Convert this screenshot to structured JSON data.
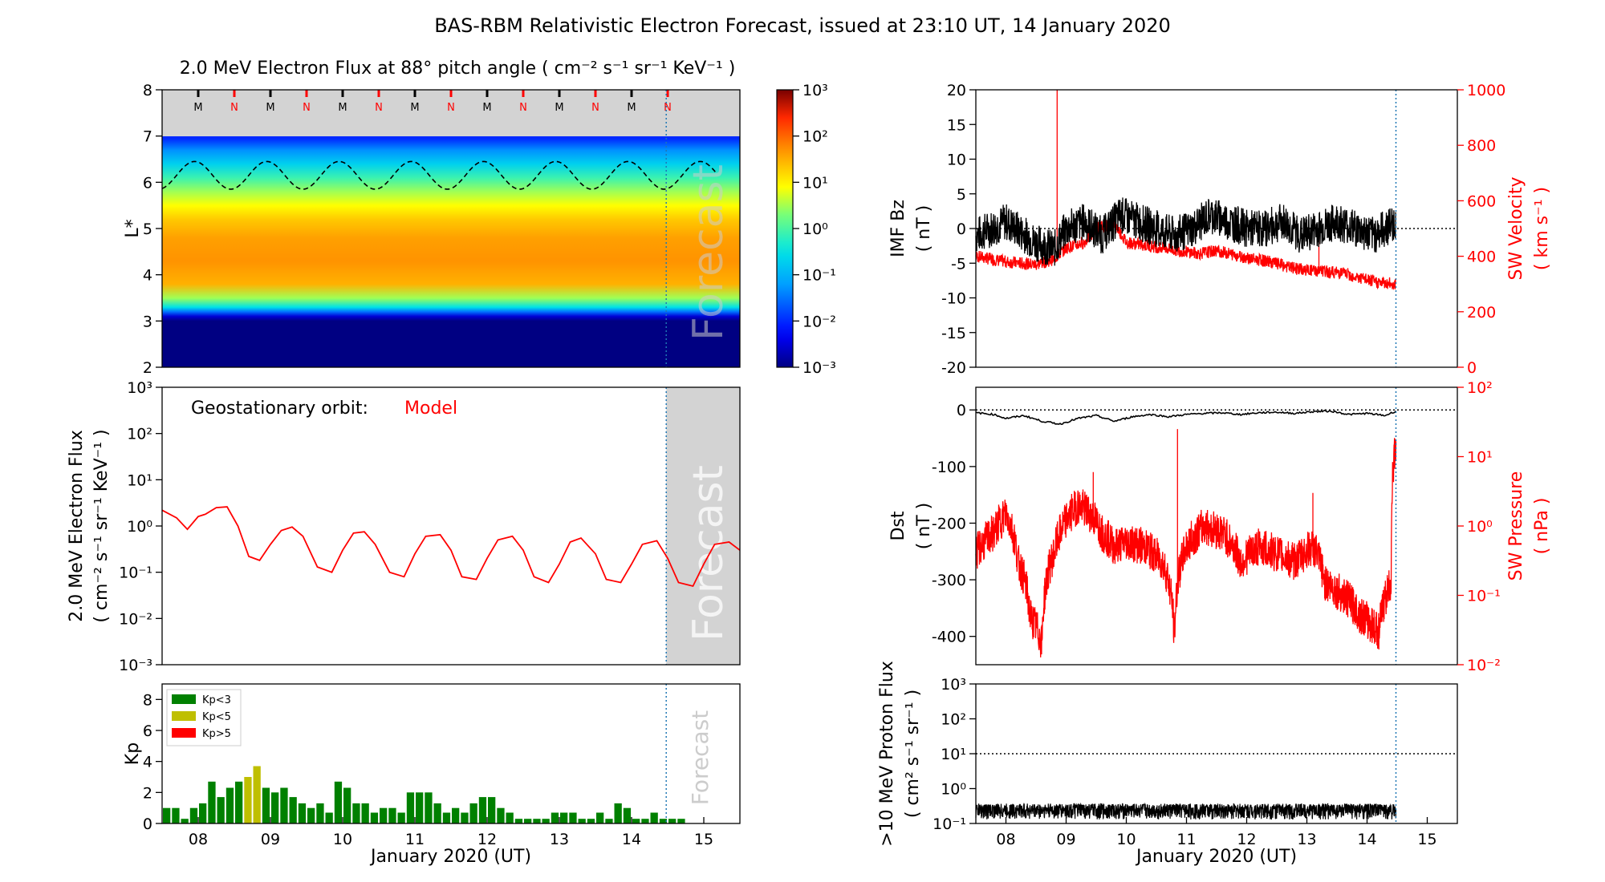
{
  "figure": {
    "title": "BAS-RBM Relativistic Electron Forecast, issued at 23:10 UT, 14 January 2020",
    "xlabel": "January 2020 (UT)",
    "day_ticks": [
      "08",
      "09",
      "10",
      "11",
      "12",
      "13",
      "14",
      "15"
    ],
    "x_range_days": [
      7.5,
      15.5
    ],
    "forecast_start_day": 14.48,
    "forecast_label": "Forecast"
  },
  "colors": {
    "model_red": "#ff0000",
    "data_black": "#000000",
    "forecast_line": "#1f77b4",
    "forecast_shade": "#d3d3d3",
    "kp_low": "#008000",
    "kp_mid": "#bfbf00",
    "kp_high": "#ff0000"
  },
  "chart_data": [
    {
      "id": "heatmap",
      "type": "heatmap",
      "title": "2.0 MeV Electron Flux at 88° pitch angle ( cm⁻² s⁻¹ sr⁻¹ KeV⁻¹ )",
      "ylabel": "L*",
      "ylim": [
        2,
        8
      ],
      "yticks": [
        "2",
        "3",
        "4",
        "5",
        "6",
        "7",
        "8"
      ],
      "colorbar": {
        "scale": "log",
        "range": [
          0.001,
          1000
        ],
        "tick_labels": [
          "10⁻³",
          "10⁻²",
          "10⁻¹",
          "10⁰",
          "10¹",
          "10²",
          "10³"
        ]
      },
      "orbit_marker_labels": [
        "M",
        "N",
        "M",
        "N",
        "M",
        "N",
        "M",
        "N",
        "M",
        "N",
        "M",
        "N",
        "M",
        "N"
      ],
      "orbit_marker_days": [
        8.0,
        8.5,
        9.0,
        9.5,
        10.0,
        10.5,
        11.0,
        11.5,
        12.0,
        12.5,
        13.0,
        13.5,
        14.0,
        14.5
      ],
      "flux_profile_by_L": [
        {
          "L": 2.0,
          "flux": 0.001
        },
        {
          "L": 3.0,
          "flux": 0.001
        },
        {
          "L": 3.1,
          "flux": 0.003
        },
        {
          "L": 3.2,
          "flux": 0.03
        },
        {
          "L": 3.3,
          "flux": 0.3
        },
        {
          "L": 3.5,
          "flux": 3
        },
        {
          "L": 3.8,
          "flux": 30
        },
        {
          "L": 4.3,
          "flux": 50
        },
        {
          "L": 4.8,
          "flux": 40
        },
        {
          "L": 5.2,
          "flux": 20
        },
        {
          "L": 5.5,
          "flux": 8
        },
        {
          "L": 5.8,
          "flux": 3
        },
        {
          "L": 6.1,
          "flux": 0.8
        },
        {
          "L": 6.4,
          "flux": 0.2
        },
        {
          "L": 6.7,
          "flux": 0.05
        },
        {
          "L": 6.95,
          "flux": 0.01
        }
      ],
      "geo_L_mean": 6.15,
      "geo_L_amplitude": 0.3
    },
    {
      "id": "geo_flux",
      "type": "line",
      "annotation_label": "Geostationary orbit:",
      "annotation_value": "Model",
      "ylabel": "2.0 MeV Electron Flux",
      "ylabel2": "( cm⁻² s⁻¹ sr⁻¹ KeV⁻¹ )",
      "yscale": "log",
      "ylim": [
        0.001,
        1000
      ],
      "ytick_labels": [
        "10⁻³",
        "10⁻²",
        "10⁻¹",
        "10⁰",
        "10¹",
        "10²",
        "10³"
      ],
      "series": [
        {
          "name": "Model",
          "points": [
            [
              7.5,
              2.2
            ],
            [
              7.7,
              1.5
            ],
            [
              7.85,
              0.85
            ],
            [
              8.0,
              1.6
            ],
            [
              8.1,
              1.8
            ],
            [
              8.25,
              2.5
            ],
            [
              8.4,
              2.6
            ],
            [
              8.55,
              1.0
            ],
            [
              8.7,
              0.22
            ],
            [
              8.85,
              0.18
            ],
            [
              9.0,
              0.4
            ],
            [
              9.15,
              0.8
            ],
            [
              9.3,
              0.95
            ],
            [
              9.45,
              0.6
            ],
            [
              9.65,
              0.13
            ],
            [
              9.85,
              0.1
            ],
            [
              10.0,
              0.3
            ],
            [
              10.15,
              0.7
            ],
            [
              10.3,
              0.75
            ],
            [
              10.45,
              0.4
            ],
            [
              10.65,
              0.1
            ],
            [
              10.85,
              0.08
            ],
            [
              11.0,
              0.25
            ],
            [
              11.15,
              0.6
            ],
            [
              11.35,
              0.65
            ],
            [
              11.5,
              0.3
            ],
            [
              11.65,
              0.08
            ],
            [
              11.85,
              0.07
            ],
            [
              12.0,
              0.2
            ],
            [
              12.15,
              0.5
            ],
            [
              12.35,
              0.6
            ],
            [
              12.5,
              0.3
            ],
            [
              12.65,
              0.08
            ],
            [
              12.85,
              0.06
            ],
            [
              13.0,
              0.15
            ],
            [
              13.15,
              0.45
            ],
            [
              13.3,
              0.55
            ],
            [
              13.5,
              0.25
            ],
            [
              13.65,
              0.07
            ],
            [
              13.85,
              0.06
            ],
            [
              14.0,
              0.15
            ],
            [
              14.15,
              0.4
            ],
            [
              14.35,
              0.48
            ],
            [
              14.5,
              0.2
            ],
            [
              14.65,
              0.06
            ],
            [
              14.85,
              0.05
            ],
            [
              15.0,
              0.15
            ],
            [
              15.15,
              0.4
            ],
            [
              15.35,
              0.45
            ],
            [
              15.5,
              0.3
            ]
          ]
        }
      ]
    },
    {
      "id": "kp",
      "type": "bar",
      "ylabel": "Kp",
      "ylim": [
        0,
        9
      ],
      "yticks": [
        "0",
        "2",
        "4",
        "6",
        "8"
      ],
      "bar_interval_days": 0.125,
      "legend": [
        "Kp<3",
        "Kp<5",
        "Kp>5"
      ],
      "start_day": 7.5,
      "values": [
        1.0,
        1.0,
        0.3,
        1.0,
        1.3,
        2.7,
        1.7,
        2.3,
        2.7,
        3.0,
        3.7,
        2.3,
        2.0,
        2.3,
        1.7,
        1.3,
        1.0,
        1.3,
        0.7,
        2.7,
        2.3,
        1.3,
        1.3,
        0.7,
        1.0,
        1.0,
        0.7,
        2.0,
        2.0,
        2.0,
        1.3,
        0.7,
        1.0,
        0.7,
        1.3,
        1.7,
        1.7,
        1.0,
        0.7,
        0.3,
        0.3,
        0.3,
        0.3,
        0.7,
        0.7,
        0.7,
        0.3,
        0.3,
        0.7,
        0.3,
        1.3,
        1.0,
        0.3,
        0.3,
        0.7,
        0.3,
        0.3,
        0.3
      ]
    },
    {
      "id": "imf_sw",
      "type": "line",
      "ylabel": "IMF Bz",
      "ylabel_unit": "( nT )",
      "ylim": [
        -20,
        20
      ],
      "yticks": [
        "-20",
        "-15",
        "-10",
        "-5",
        "0",
        "5",
        "10",
        "15",
        "20"
      ],
      "y2label": "SW Velocity",
      "y2label_unit": "( km s⁻¹ )",
      "y2lim": [
        0,
        1000
      ],
      "y2ticks": [
        "0",
        "200",
        "400",
        "600",
        "800",
        "1000"
      ],
      "series": [
        {
          "name": "IMF Bz",
          "axis": "left",
          "points": [
            [
              7.5,
              -1
            ],
            [
              8.0,
              1
            ],
            [
              8.5,
              -2
            ],
            [
              8.8,
              -3
            ],
            [
              9.0,
              0
            ],
            [
              9.3,
              1
            ],
            [
              9.6,
              -1
            ],
            [
              9.9,
              2
            ],
            [
              10.2,
              1
            ],
            [
              10.5,
              0
            ],
            [
              10.8,
              -1
            ],
            [
              11.1,
              0
            ],
            [
              11.4,
              2
            ],
            [
              11.7,
              1
            ],
            [
              12.0,
              0
            ],
            [
              12.3,
              0
            ],
            [
              12.6,
              1
            ],
            [
              12.9,
              -1
            ],
            [
              13.2,
              0
            ],
            [
              13.5,
              1
            ],
            [
              13.8,
              0
            ],
            [
              14.1,
              -1
            ],
            [
              14.48,
              1
            ]
          ]
        },
        {
          "name": "SW Velocity",
          "axis": "right",
          "points": [
            [
              7.5,
              400
            ],
            [
              8.0,
              380
            ],
            [
              8.5,
              370
            ],
            [
              8.8,
              390
            ],
            [
              9.0,
              430
            ],
            [
              9.3,
              450
            ],
            [
              9.5,
              500
            ],
            [
              9.8,
              520
            ],
            [
              10.0,
              450
            ],
            [
              10.3,
              440
            ],
            [
              10.6,
              430
            ],
            [
              10.9,
              420
            ],
            [
              11.2,
              410
            ],
            [
              11.5,
              420
            ],
            [
              11.8,
              405
            ],
            [
              12.1,
              390
            ],
            [
              12.4,
              380
            ],
            [
              12.7,
              360
            ],
            [
              13.0,
              350
            ],
            [
              13.3,
              345
            ],
            [
              13.6,
              340
            ],
            [
              13.9,
              320
            ],
            [
              14.2,
              305
            ],
            [
              14.48,
              300
            ]
          ],
          "spikes": [
            [
              8.85,
              1000
            ],
            [
              13.2,
              480
            ]
          ]
        }
      ]
    },
    {
      "id": "dst_pressure",
      "type": "line",
      "ylabel": "Dst",
      "ylabel_unit": "( nT )",
      "ylim": [
        -450,
        40
      ],
      "yticks": [
        "-400",
        "-300",
        "-200",
        "-100",
        "0"
      ],
      "y2label": "SW Pressure",
      "y2label_unit": "( nPa )",
      "y2scale": "log",
      "y2lim": [
        0.01,
        100
      ],
      "y2tick_labels": [
        "10⁻²",
        "10⁻¹",
        "10⁰",
        "10¹",
        "10²"
      ],
      "series": [
        {
          "name": "Dst",
          "axis": "left",
          "points": [
            [
              7.5,
              -5
            ],
            [
              7.8,
              -8
            ],
            [
              8.0,
              -15
            ],
            [
              8.3,
              -10
            ],
            [
              8.6,
              -20
            ],
            [
              8.9,
              -25
            ],
            [
              9.2,
              -15
            ],
            [
              9.5,
              -10
            ],
            [
              9.8,
              -20
            ],
            [
              10.1,
              -12
            ],
            [
              10.4,
              -8
            ],
            [
              10.7,
              -12
            ],
            [
              11.0,
              -8
            ],
            [
              11.3,
              -6
            ],
            [
              11.6,
              -5
            ],
            [
              11.9,
              -8
            ],
            [
              12.2,
              -5
            ],
            [
              12.5,
              -4
            ],
            [
              12.8,
              -6
            ],
            [
              13.1,
              -3
            ],
            [
              13.4,
              -2
            ],
            [
              13.7,
              -8
            ],
            [
              14.0,
              -6
            ],
            [
              14.3,
              -10
            ],
            [
              14.48,
              -2
            ]
          ]
        },
        {
          "name": "SW Pressure",
          "axis": "right",
          "points": [
            [
              7.5,
              0.4
            ],
            [
              7.8,
              0.8
            ],
            [
              8.0,
              1.5
            ],
            [
              8.2,
              0.3
            ],
            [
              8.4,
              0.05
            ],
            [
              8.6,
              0.02
            ],
            [
              8.8,
              0.4
            ],
            [
              9.0,
              1.2
            ],
            [
              9.2,
              2.0
            ],
            [
              9.4,
              1.5
            ],
            [
              9.6,
              0.8
            ],
            [
              9.8,
              0.5
            ],
            [
              10.0,
              0.6
            ],
            [
              10.3,
              0.5
            ],
            [
              10.6,
              0.3
            ],
            [
              10.8,
              0.02
            ],
            [
              11.0,
              0.5
            ],
            [
              11.3,
              1.0
            ],
            [
              11.6,
              0.8
            ],
            [
              11.9,
              0.3
            ],
            [
              12.2,
              0.5
            ],
            [
              12.5,
              0.4
            ],
            [
              12.8,
              0.3
            ],
            [
              13.1,
              0.5
            ],
            [
              13.3,
              0.15
            ],
            [
              13.6,
              0.1
            ],
            [
              13.9,
              0.05
            ],
            [
              14.2,
              0.03
            ],
            [
              14.4,
              0.15
            ],
            [
              14.48,
              15
            ]
          ],
          "spikes": [
            [
              10.85,
              25
            ],
            [
              13.1,
              3
            ],
            [
              9.45,
              6
            ]
          ]
        }
      ]
    },
    {
      "id": "proton_flux",
      "type": "line",
      "ylabel": ">10 MeV Proton Flux",
      "ylabel_unit": "( cm² s⁻¹ sr⁻¹ )",
      "yscale": "log",
      "ylim": [
        0.1,
        1000
      ],
      "ytick_labels": [
        "10⁻¹",
        "10⁰",
        "10¹",
        "10²",
        "10³"
      ],
      "threshold": 10,
      "series": [
        {
          "name": "Proton flux",
          "mean": 0.25,
          "noise": 0.12,
          "x_range": [
            7.5,
            14.48
          ]
        }
      ]
    }
  ]
}
